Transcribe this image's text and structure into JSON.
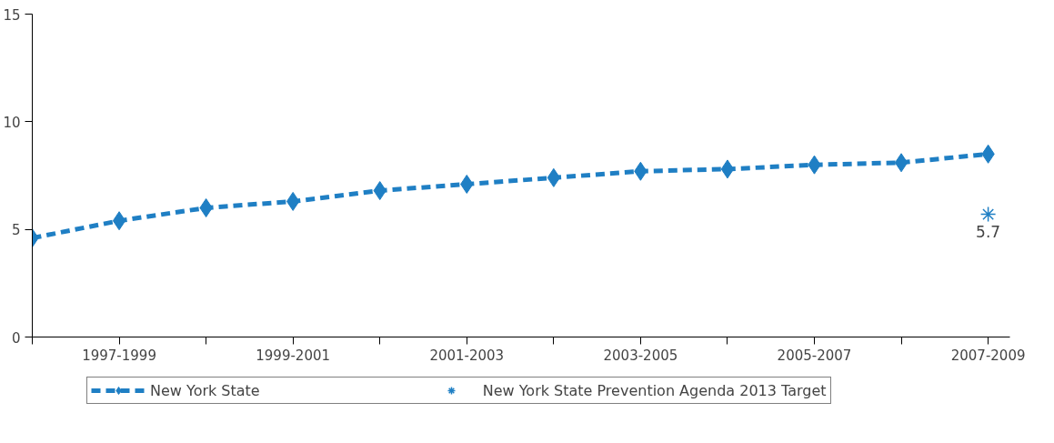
{
  "chart_data": {
    "type": "line",
    "categories": [
      null,
      "1997-1999",
      null,
      "1999-2001",
      null,
      "2001-2003",
      null,
      "2003-2005",
      null,
      "2005-2007",
      null,
      "2007-2009"
    ],
    "series": [
      {
        "name": "New York State",
        "color": "#1f7fc4",
        "values": [
          4.6,
          5.4,
          6.0,
          6.3,
          6.8,
          7.1,
          7.4,
          7.7,
          7.8,
          8.0,
          8.1,
          8.5
        ],
        "marker": "diamond",
        "line_style": "dashed"
      },
      {
        "name": "New York State Prevention Agenda 2013 Target",
        "type": "scatter",
        "color": "#1f7fc4",
        "x": [
          "2007-2009"
        ],
        "values": [
          5.7
        ],
        "marker": "cross",
        "value_labels": [
          "5.7"
        ]
      }
    ],
    "ylim": [
      0,
      15
    ],
    "yticks": [
      0,
      5,
      10,
      15
    ],
    "grid": false,
    "legend": "bottom"
  }
}
